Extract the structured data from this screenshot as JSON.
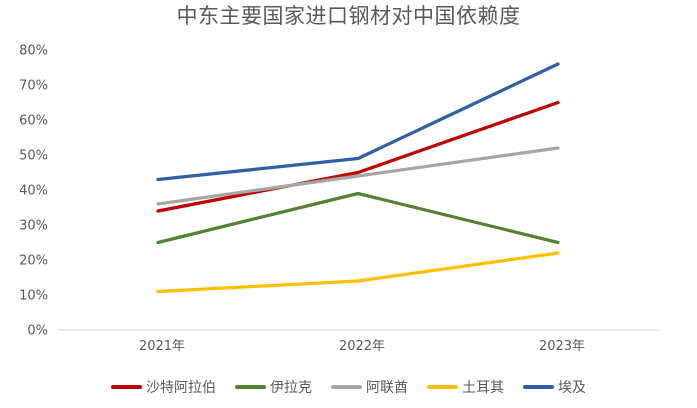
{
  "chart_data": {
    "type": "line",
    "title": "中东主要国家进口钢材对中国依赖度",
    "xlabel": "",
    "ylabel": "",
    "categories": [
      "2021年",
      "2022年",
      "2023年"
    ],
    "series": [
      {
        "name": "沙特阿拉伯",
        "color": "#C00000",
        "values": [
          34,
          45,
          65
        ]
      },
      {
        "name": "伊拉克",
        "color": "#548235",
        "values": [
          25,
          39,
          25
        ]
      },
      {
        "name": "阿联酋",
        "color": "#A6A6A6",
        "values": [
          36,
          44,
          52
        ]
      },
      {
        "name": "土耳其",
        "color": "#FFC000",
        "values": [
          11,
          14,
          22
        ]
      },
      {
        "name": "埃及",
        "color": "#2F5FA8",
        "values": [
          43,
          49,
          76
        ]
      }
    ],
    "ylim": [
      0,
      80
    ],
    "ytick_step": 10,
    "ytick_labels": [
      "0%",
      "10%",
      "20%",
      "30%",
      "40%",
      "50%",
      "60%",
      "70%",
      "80%"
    ],
    "grid": false,
    "legend_position": "bottom",
    "colors": {
      "axis_line": "#D9D9D9",
      "tick_label": "#595959",
      "title": "#595959"
    }
  }
}
